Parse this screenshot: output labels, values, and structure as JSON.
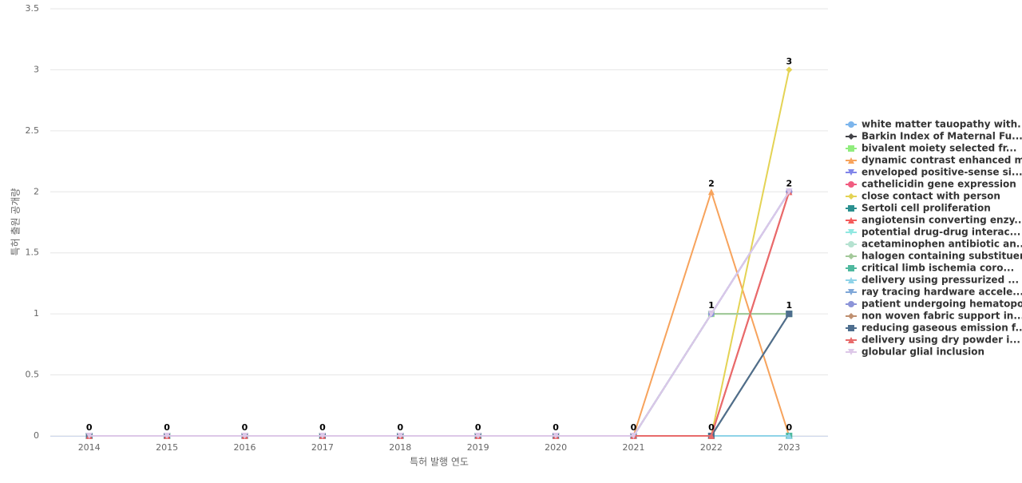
{
  "chart_data": {
    "type": "line",
    "x_label": "특허 발행 연도",
    "y_label": "특허 출원 공개량",
    "categories": [
      "2014",
      "2015",
      "2016",
      "2017",
      "2018",
      "2019",
      "2020",
      "2021",
      "2022",
      "2023"
    ],
    "ylim": [
      0,
      3.5
    ],
    "yticks": [
      0,
      0.5,
      1,
      1.5,
      2,
      2.5,
      3,
      3.5
    ],
    "grid": true,
    "legend": "right",
    "series": [
      {
        "name": "white matter tauopathy with...",
        "color": "#7cb5ec",
        "marker": "circle",
        "values": [
          0,
          0,
          0,
          0,
          0,
          0,
          0,
          0,
          1,
          2
        ]
      },
      {
        "name": "Barkin Index of Maternal Fu...",
        "color": "#434348",
        "marker": "diamond",
        "values": [
          0,
          0,
          0,
          0,
          0,
          0,
          0,
          0,
          0,
          1
        ]
      },
      {
        "name": "bivalent moiety selected fr...",
        "color": "#90ed7d",
        "marker": "square",
        "values": [
          0,
          0,
          0,
          0,
          0,
          0,
          0,
          0,
          1,
          1
        ]
      },
      {
        "name": "dynamic contrast enhanced m...",
        "color": "#f7a35c",
        "marker": "triangle",
        "values": [
          0,
          0,
          0,
          0,
          0,
          0,
          0,
          0,
          2,
          0
        ]
      },
      {
        "name": "enveloped positive-sense si...",
        "color": "#8085e9",
        "marker": "triangle-down",
        "values": [
          0,
          0,
          0,
          0,
          0,
          0,
          0,
          0,
          1,
          2
        ]
      },
      {
        "name": "cathelicidin gene expression",
        "color": "#f15c80",
        "marker": "circle",
        "values": [
          0,
          0,
          0,
          0,
          0,
          0,
          0,
          0,
          0,
          2
        ]
      },
      {
        "name": "close contact with person",
        "color": "#e4d354",
        "marker": "diamond",
        "values": [
          0,
          0,
          0,
          0,
          0,
          0,
          0,
          0,
          0,
          3
        ]
      },
      {
        "name": "Sertoli cell proliferation",
        "color": "#2b908f",
        "marker": "square",
        "values": [
          0,
          0,
          0,
          0,
          0,
          0,
          0,
          0,
          0,
          1
        ]
      },
      {
        "name": "angiotensin converting enzy...",
        "color": "#f45b5b",
        "marker": "triangle",
        "values": [
          0,
          0,
          0,
          0,
          0,
          0,
          0,
          0,
          0,
          2
        ]
      },
      {
        "name": "potential drug-drug interac...",
        "color": "#91e8e1",
        "marker": "triangle-down",
        "values": [
          0,
          0,
          0,
          0,
          0,
          0,
          0,
          0,
          0,
          0
        ]
      },
      {
        "name": "acetaminophen antibiotic an...",
        "color": "#b5e2d0",
        "marker": "circle",
        "values": [
          0,
          0,
          0,
          0,
          0,
          0,
          0,
          0,
          1,
          1
        ]
      },
      {
        "name": "halogen containing substituent",
        "color": "#a3c99a",
        "marker": "diamond",
        "values": [
          0,
          0,
          0,
          0,
          0,
          0,
          0,
          0,
          1,
          1
        ]
      },
      {
        "name": "critical limb ischemia coro...",
        "color": "#4fb99f",
        "marker": "square",
        "values": [
          0,
          0,
          0,
          0,
          0,
          0,
          0,
          0,
          0,
          0
        ]
      },
      {
        "name": "delivery using pressurized ...",
        "color": "#8fd3e8",
        "marker": "triangle",
        "values": [
          0,
          0,
          0,
          0,
          0,
          0,
          0,
          0,
          0,
          0
        ]
      },
      {
        "name": "ray tracing hardware accele...",
        "color": "#7fa7d8",
        "marker": "triangle-down",
        "values": [
          0,
          0,
          0,
          0,
          0,
          0,
          0,
          0,
          1,
          2
        ]
      },
      {
        "name": "patient undergoing hematopo...",
        "color": "#8c94d8",
        "marker": "circle",
        "values": [
          0,
          0,
          0,
          0,
          0,
          0,
          0,
          0,
          1,
          2
        ]
      },
      {
        "name": "non woven fabric support in...",
        "color": "#c09070",
        "marker": "diamond",
        "values": [
          0,
          0,
          0,
          0,
          0,
          0,
          0,
          0,
          0,
          1
        ]
      },
      {
        "name": "reducing gaseous emission f...",
        "color": "#4e6e8e",
        "marker": "square",
        "values": [
          0,
          0,
          0,
          0,
          0,
          0,
          0,
          0,
          0,
          1
        ]
      },
      {
        "name": "delivery using dry powder i...",
        "color": "#e86b6b",
        "marker": "triangle",
        "values": [
          0,
          0,
          0,
          0,
          0,
          0,
          0,
          0,
          0,
          2
        ]
      },
      {
        "name": "globular glial inclusion",
        "color": "#ddc8e8",
        "marker": "triangle-down",
        "values": [
          0,
          0,
          0,
          0,
          0,
          0,
          0,
          0,
          1,
          2
        ]
      }
    ]
  }
}
